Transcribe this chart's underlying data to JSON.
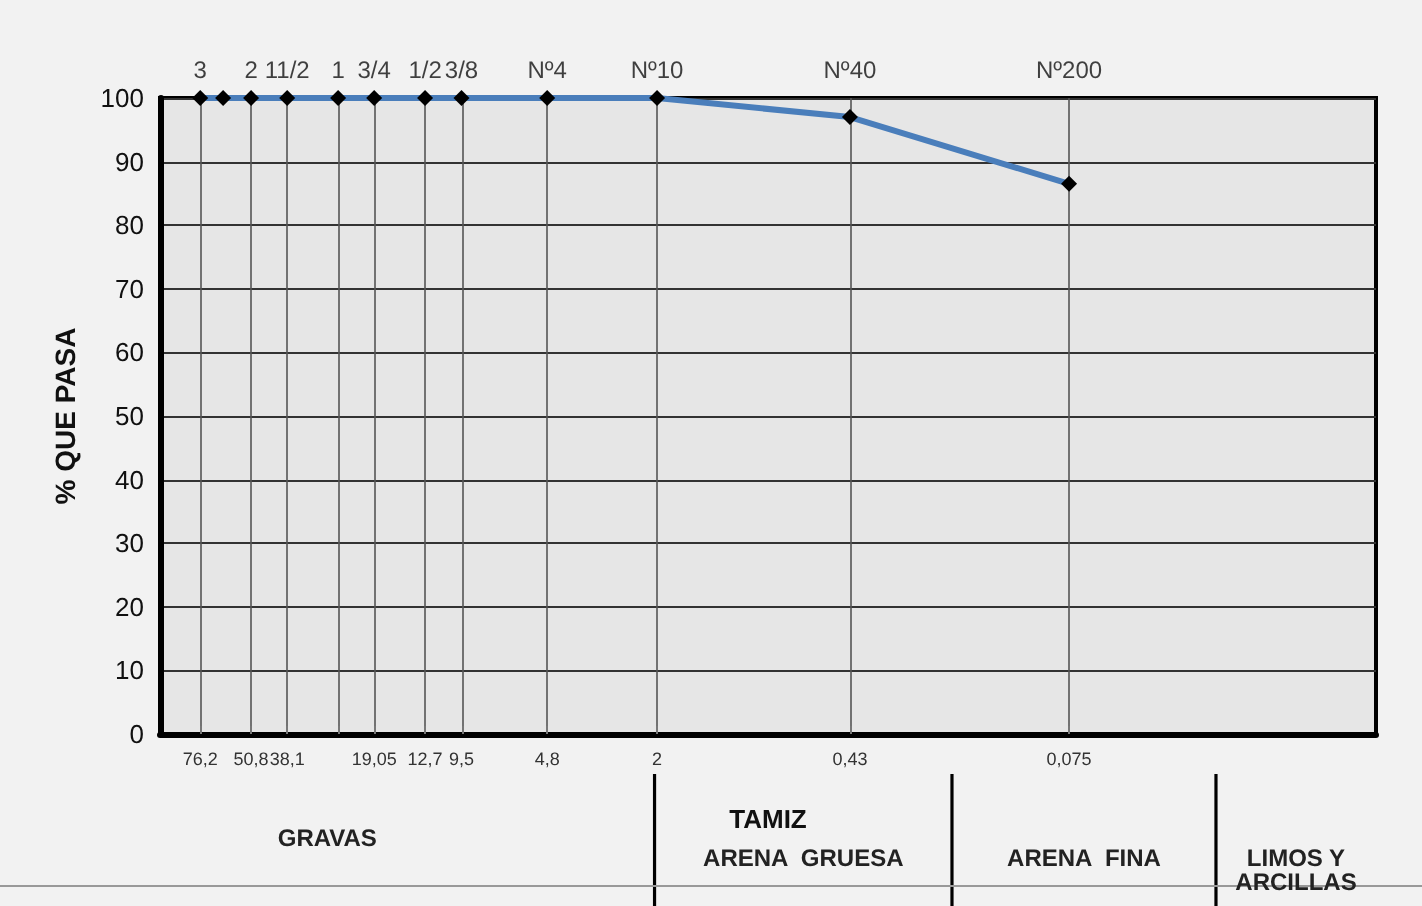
{
  "chart_data": {
    "type": "line",
    "ylabel": "% QUE PASA",
    "xlabel": "TAMIZ",
    "log": "x",
    "xlim": [
      105,
      0.0065
    ],
    "ylim": [
      0,
      100
    ],
    "yticks": [
      0,
      10,
      20,
      30,
      40,
      50,
      60,
      70,
      80,
      90,
      100
    ],
    "xticks": [
      {
        "value": 76.2,
        "label": "76,2"
      },
      {
        "value": 50.8,
        "label": "50,8"
      },
      {
        "value": 38.1,
        "label": "38,1"
      },
      {
        "value": 25.4,
        "label": null
      },
      {
        "value": 19.05,
        "label": "19,05"
      },
      {
        "value": 12.7,
        "label": "12,7"
      },
      {
        "value": 9.5,
        "label": "9,5"
      },
      {
        "value": 4.8,
        "label": "4,8"
      },
      {
        "value": 2,
        "label": "2"
      },
      {
        "value": 0.43,
        "label": "0,43"
      },
      {
        "value": 0.075,
        "label": "0,075"
      }
    ],
    "series": [
      {
        "color": "#4a7ebb",
        "colors": [
          "#000000",
          "#000000",
          "#000000",
          "#000000",
          "#000000",
          "#000000",
          "#000000",
          "#000000",
          "#000000",
          "#000000",
          "#000000",
          "#000000"
        ],
        "x": [
          76.2,
          63.5,
          50.8,
          38.1,
          25.4,
          19.05,
          12.7,
          9.5,
          4.8,
          2,
          0.43,
          0.075
        ],
        "values": [
          100,
          100,
          100,
          100,
          100,
          100,
          100,
          100,
          100,
          100,
          97,
          86.5
        ]
      }
    ],
    "marker": "diamond",
    "line_style": "solid",
    "grid": true,
    "annotations": [
      "3",
      "2",
      "11/2",
      "1",
      "3/4",
      "1/2",
      "3/8",
      "Nº4",
      "Nº10",
      "Nº40",
      "Nº200",
      "GRAVAS",
      "ARENA GRUESA",
      "ARENA FINA",
      "LIMOS Y ARCILLAS"
    ]
  }
}
